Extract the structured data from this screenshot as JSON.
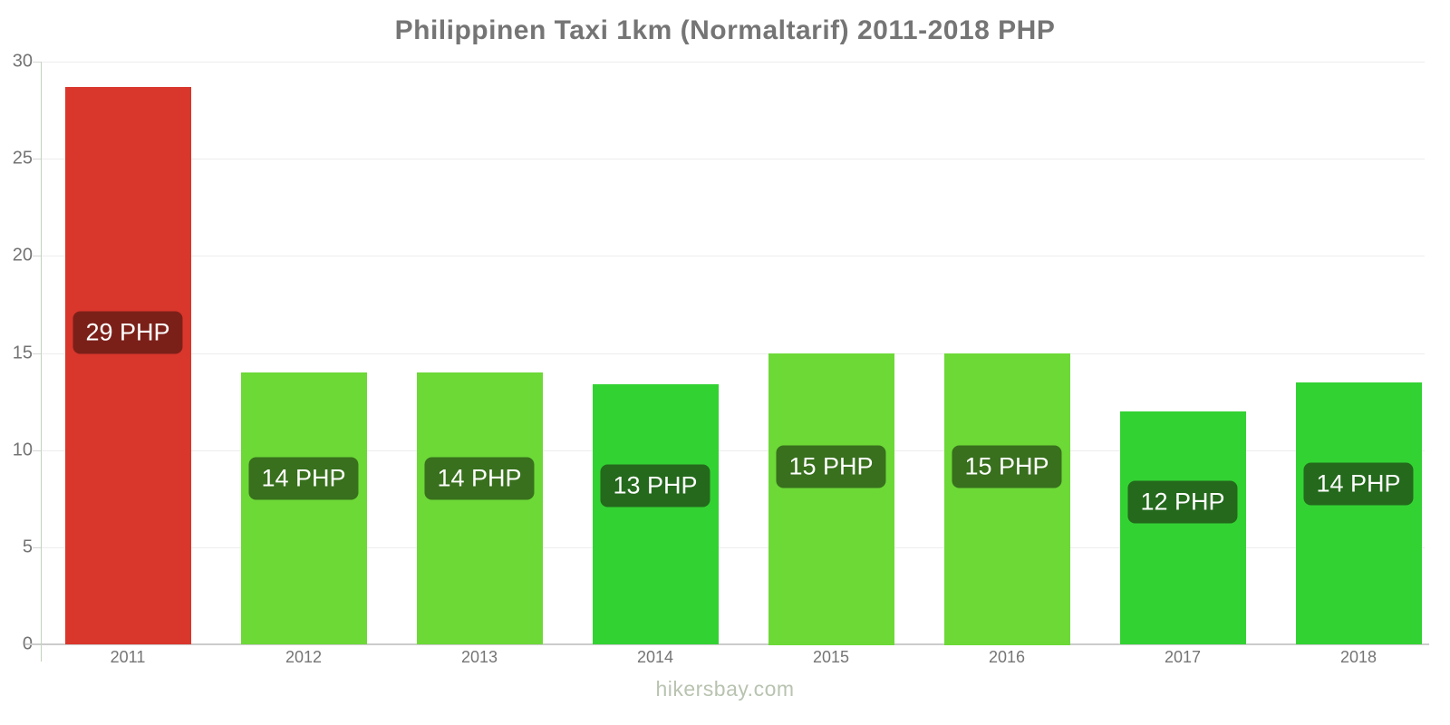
{
  "chart_data": {
    "type": "bar",
    "title": "Philippinen Taxi 1km (Normaltarif) 2011-2018 PHP",
    "currency": "PHP",
    "categories": [
      "2011",
      "2012",
      "2013",
      "2014",
      "2015",
      "2016",
      "2017",
      "2018"
    ],
    "values": [
      28.7,
      14,
      14,
      13.4,
      15,
      15,
      12,
      13.5
    ],
    "bar_labels": [
      "29 PHP",
      "14 PHP",
      "14 PHP",
      "13 PHP",
      "15 PHP",
      "15 PHP",
      "12 PHP",
      "14 PHP"
    ],
    "bar_colors": [
      "#d9362c",
      "#6cd937",
      "#6cd937",
      "#33d233",
      "#6cd937",
      "#6cd937",
      "#33d233",
      "#33d233"
    ],
    "bar_label_bg_colors": [
      "#7b2019",
      "#38701d",
      "#38701d",
      "#24691c",
      "#38701d",
      "#38701d",
      "#24691c",
      "#24691c"
    ],
    "xlabel": "",
    "ylabel": "",
    "ylim": [
      0,
      30
    ],
    "yticks": [
      0,
      5,
      10,
      15,
      20,
      25,
      30
    ],
    "ytick_labels": [
      "0",
      "5",
      "10",
      "15",
      "20",
      "25",
      "30"
    ],
    "grid": true,
    "legend": "none",
    "colors": {
      "title_text": "#757575",
      "axis_text": "#737373",
      "gridline": "#ededed",
      "x_axis_line": "#cccccc",
      "y_axis_line": "#c4d1bf",
      "bar_label_text": "#ffffff",
      "background": "#ffffff"
    }
  },
  "footer": {
    "watermark": "hikersbay.com"
  }
}
